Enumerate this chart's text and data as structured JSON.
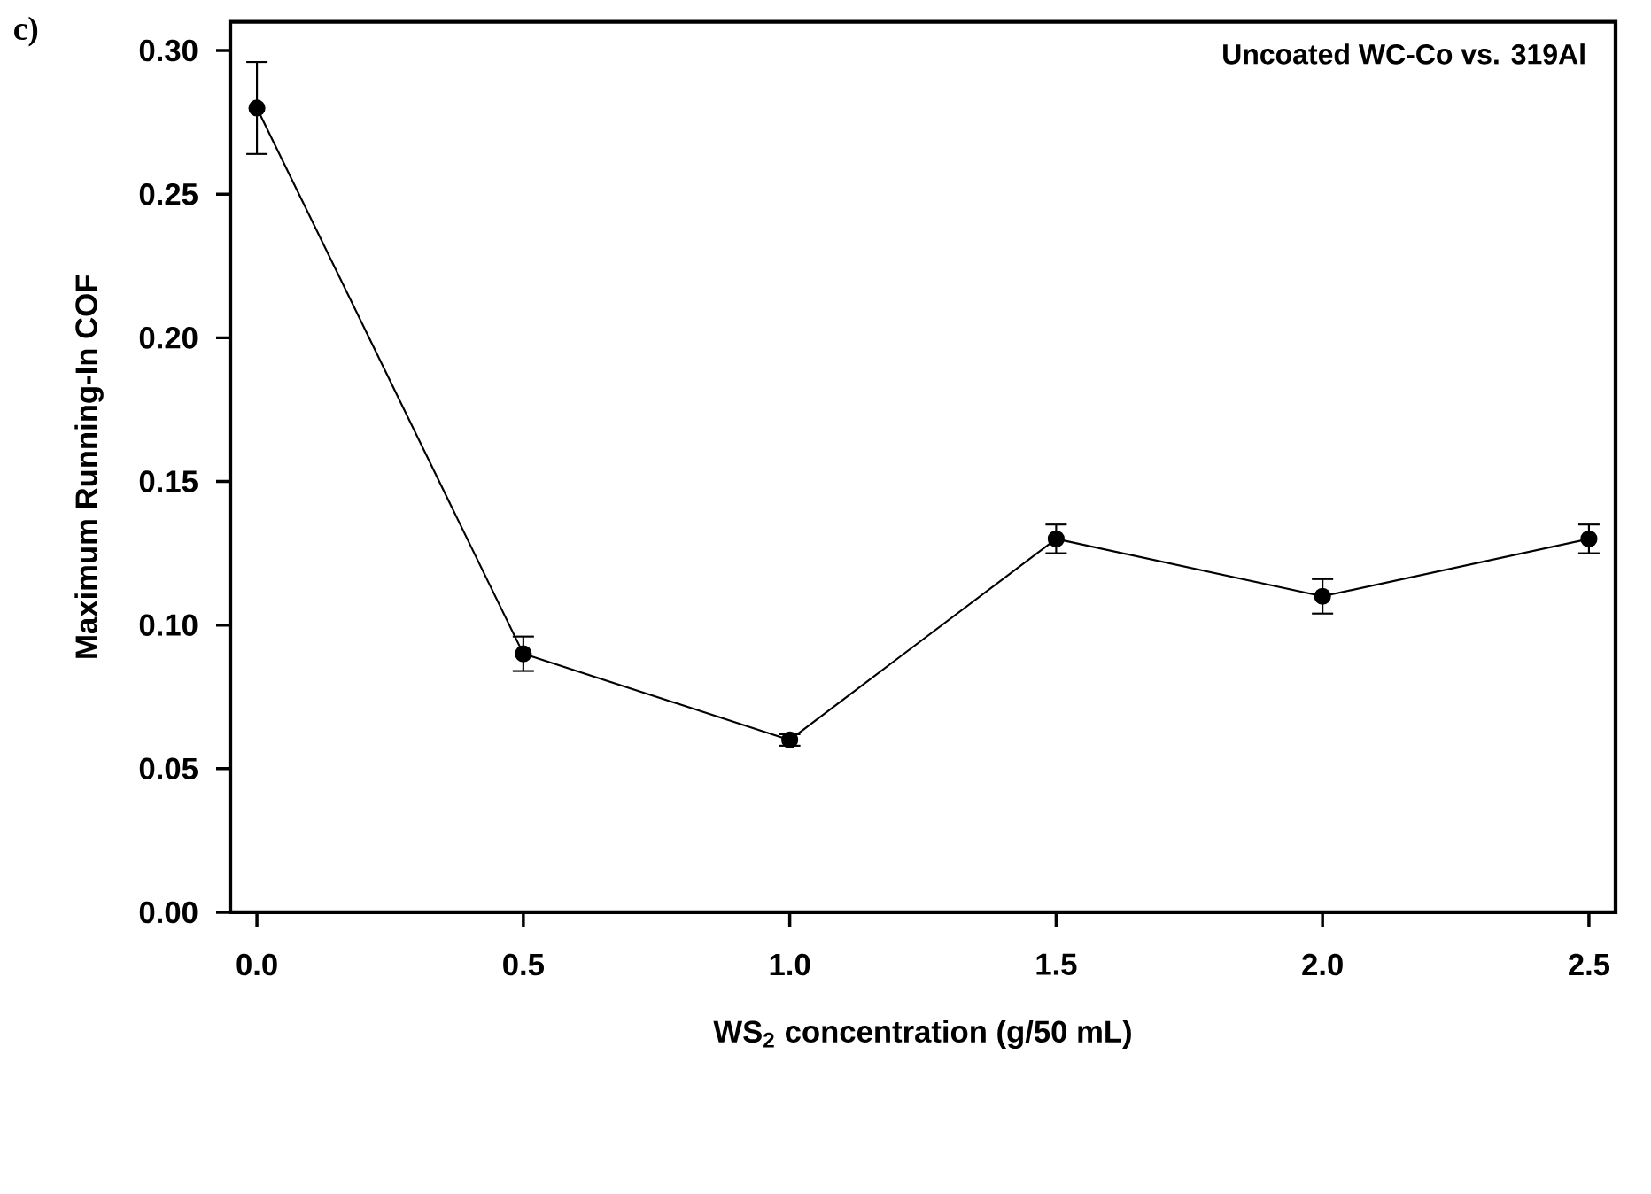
{
  "chart_data": {
    "type": "line",
    "title": "Uncoated WC-Co vs. 319Al",
    "xlabel": "WS$_{2}$ concentration (g/50 mL)",
    "ylabel": "Maximum Running-In COF",
    "annotations": [
      "c)"
    ],
    "x": [
      0,
      0.5,
      1.0,
      1.5,
      2.0,
      2.5
    ],
    "series": [
      {
        "color": "#000000",
        "values": [
          0.28,
          0.09,
          0.06,
          0.13,
          0.11,
          0.13
        ],
        "errors": [
          0.016,
          0.006,
          0.002,
          0.005,
          0.006,
          0.005
        ]
      }
    ],
    "xlim": [
      -0.05,
      2.55
    ],
    "ylim": [
      0,
      0.31
    ],
    "xticks": [
      {
        "value": 0,
        "label": "0.0"
      },
      {
        "value": 0.5,
        "label": "0.5"
      },
      {
        "value": 1.0,
        "label": "1.0"
      },
      {
        "value": 1.5,
        "label": "1.5"
      },
      {
        "value": 2.0,
        "label": "2.0"
      },
      {
        "value": 2.5,
        "label": "2.5"
      }
    ],
    "yticks": [
      {
        "value": 0,
        "label": "0.00"
      },
      {
        "value": 0.05,
        "label": "0.05"
      },
      {
        "value": 0.1,
        "label": "0.10"
      },
      {
        "value": 0.15,
        "label": "0.15"
      },
      {
        "value": 0.2,
        "label": "0.20"
      },
      {
        "value": 0.25,
        "label": "0.25"
      },
      {
        "value": 0.3,
        "label": "0.30"
      }
    ],
    "grid": false,
    "legend": false,
    "marker": "circle",
    "line_style": "solid"
  }
}
